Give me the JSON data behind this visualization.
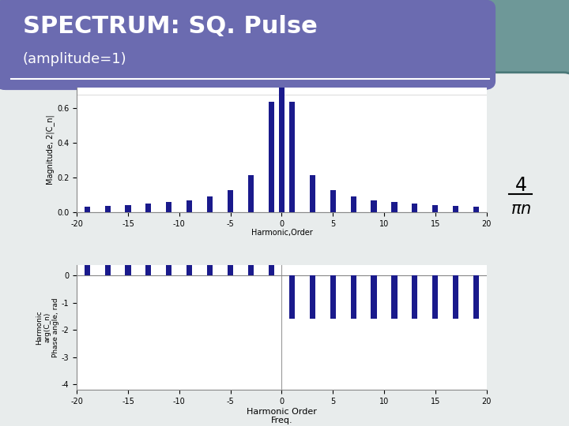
{
  "title_line1": "SPECTRUM: SQ. Pulse",
  "title_line2": "(amplitude=1)",
  "title_bg_color": "#6b6bb0",
  "outer_bg_color": "#6e9898",
  "plot_bg_color": "#ffffff",
  "bar_color": "#1a1a8c",
  "ylabel_mag": "Magnitude, 2|C_n|",
  "ylabel_phase": "Harmonic\narg(C_n)\nPhase angle, rad",
  "xlabel_bottom": "Harmonic Order\nFreq.",
  "ylim_mag": [
    0,
    0.72
  ],
  "ylim_phase": [
    -4.2,
    0.4
  ],
  "xlim": [
    -20,
    20
  ],
  "n_min": -20,
  "n_max": 20,
  "yticks_mag": [
    0.0,
    0.2,
    0.4,
    0.6
  ],
  "yticks_phase": [
    -4,
    -3,
    -2,
    -1,
    0
  ],
  "xticks": [
    -20,
    -15,
    -10,
    -5,
    0,
    5,
    10,
    15,
    20
  ],
  "bar_width": 0.55,
  "duty_cycle": 0.5
}
